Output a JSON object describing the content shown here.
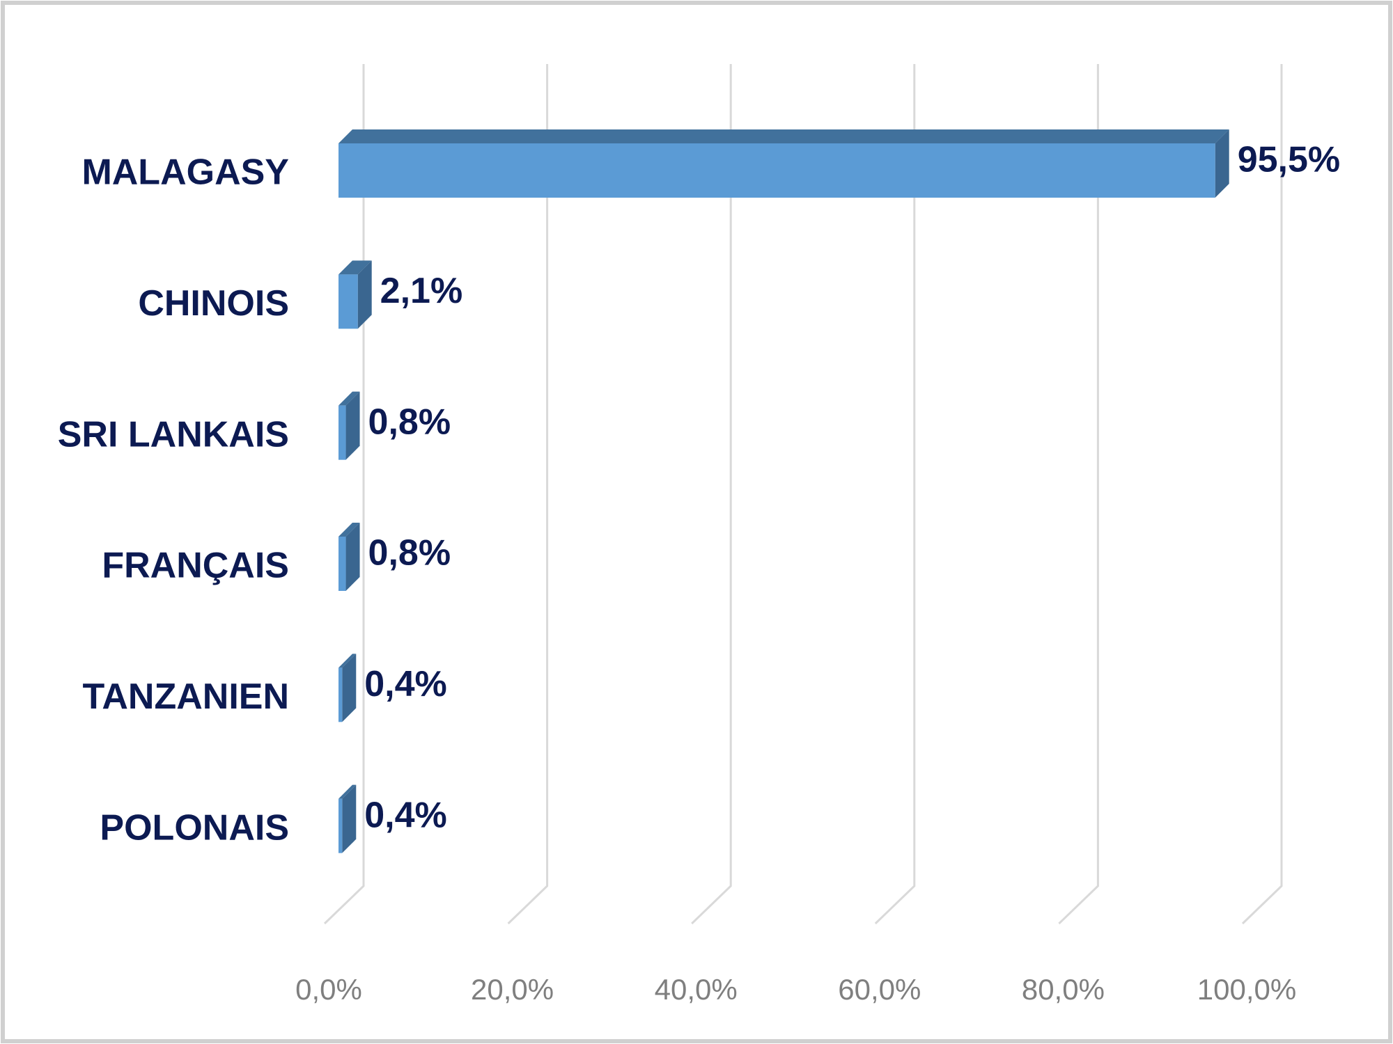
{
  "chart_data": {
    "type": "bar3d-horizontal",
    "categories": [
      "MALAGASY",
      "CHINOIS",
      "SRI LANKAIS",
      "FRANÇAIS",
      "TANZANIEN",
      "POLONAIS"
    ],
    "values": [
      95.5,
      2.1,
      0.8,
      0.8,
      0.4,
      0.4
    ],
    "value_labels": [
      "95,5%",
      "2,1%",
      "0,8%",
      "0,8%",
      "0,4%",
      "0,4%"
    ],
    "color": "#5b9bd5",
    "xlim": [
      0,
      100
    ],
    "xticks": [
      {
        "value": 0,
        "label": "0,0%"
      },
      {
        "value": 20,
        "label": "20,0%"
      },
      {
        "value": 40,
        "label": "40,0%"
      },
      {
        "value": 60,
        "label": "60,0%"
      },
      {
        "value": 80,
        "label": "80,0%"
      },
      {
        "value": 100,
        "label": "100,0%"
      }
    ],
    "grid": true
  }
}
